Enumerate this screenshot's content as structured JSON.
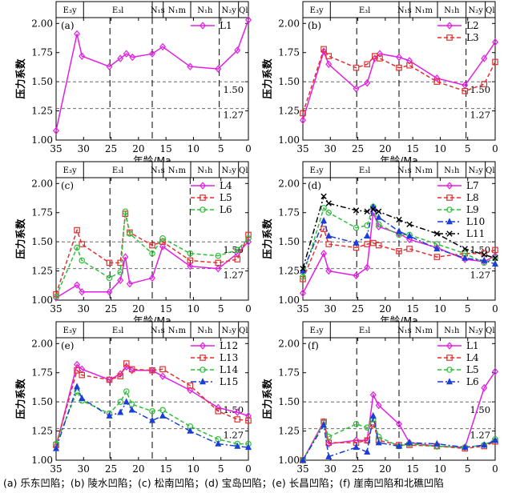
{
  "figure": {
    "caption": "(a) 乐东凹陷；(b) 陵水凹陷；(c) 松南凹陷；(d) 宝岛凹陷；(e) 长昌凹陷；(f) 崖南凹陷和北礁凹陷",
    "ylabel": "压力系数",
    "xlabel": "年龄/Ma"
  },
  "strata": [
    {
      "label": "E₃y",
      "from": 35,
      "to": 30.0
    },
    {
      "label": "E₃l",
      "from": 30.0,
      "to": 17.5
    },
    {
      "label": "N₁s",
      "from": 17.5,
      "to": 15.5
    },
    {
      "label": "N₁m",
      "from": 15.5,
      "to": 10.5
    },
    {
      "label": "N₁h",
      "from": 10.5,
      "to": 5.3
    },
    {
      "label": "N₂y",
      "from": 5.3,
      "to": 1.8
    },
    {
      "label": "Ql",
      "from": 1.8,
      "to": 0
    }
  ],
  "chart_data": [
    {
      "panel": "(a)",
      "type": "line",
      "xlim": [
        35,
        0
      ],
      "ylim": [
        1.0,
        2.05
      ],
      "xticks": [
        "35",
        "30",
        "25",
        "20",
        "15",
        "10",
        "5",
        "0"
      ],
      "yticks": [
        "1.00",
        "1.25",
        "1.50",
        "1.75",
        "2.00"
      ],
      "ref_lines": [
        {
          "y": 1.5,
          "label": "1.50"
        },
        {
          "y": 1.27,
          "label": "1.27"
        }
      ],
      "dashed_vlines": [
        25.2,
        17.5,
        5.3
      ],
      "series": [
        {
          "name": "L1",
          "color": "#e31ee3",
          "marker": "diamond",
          "style": "solid",
          "x": [
            35,
            31.2,
            30.3,
            25.3,
            23.3,
            22.2,
            21.1,
            17.5,
            15.6,
            10.6,
            5.5,
            2.0,
            0
          ],
          "y": [
            1.08,
            1.91,
            1.72,
            1.63,
            1.7,
            1.74,
            1.71,
            1.74,
            1.8,
            1.63,
            1.61,
            1.77,
            2.03
          ]
        }
      ]
    },
    {
      "panel": "(b)",
      "type": "line",
      "xlim": [
        35,
        0
      ],
      "ylim": [
        1.0,
        2.05
      ],
      "xticks": [
        "35",
        "30",
        "25",
        "20",
        "15",
        "10",
        "5",
        "0"
      ],
      "yticks": [
        "1.00",
        "1.25",
        "1.50",
        "1.75",
        "2.00"
      ],
      "ref_lines": [
        {
          "y": 1.5,
          "label": "1.50"
        },
        {
          "y": 1.27,
          "label": "1.27"
        }
      ],
      "dashed_vlines": [
        25.2,
        17.5,
        5.3
      ],
      "series": [
        {
          "name": "L2",
          "color": "#e31ee3",
          "marker": "diamond",
          "style": "solid",
          "x": [
            35,
            31.2,
            30.3,
            25.3,
            23.3,
            21.9,
            21.0,
            17.5,
            15.6,
            10.6,
            5.5,
            2.0,
            0
          ],
          "y": [
            1.17,
            1.76,
            1.65,
            1.44,
            1.49,
            1.7,
            1.74,
            1.71,
            1.68,
            1.53,
            1.47,
            1.7,
            1.84
          ]
        },
        {
          "name": "L3",
          "color": "#e03131",
          "marker": "square",
          "style": "dash",
          "x": [
            35,
            31.2,
            30.3,
            25.3,
            23.3,
            21.9,
            21.0,
            17.5,
            15.6,
            10.6,
            5.5,
            2.0,
            0
          ],
          "y": [
            1.23,
            1.78,
            1.72,
            1.62,
            1.65,
            1.72,
            1.7,
            1.62,
            1.64,
            1.5,
            1.42,
            1.48,
            1.67
          ]
        }
      ]
    },
    {
      "panel": "(c)",
      "type": "line",
      "xlim": [
        35,
        0
      ],
      "ylim": [
        1.0,
        2.05
      ],
      "xticks": [
        "35",
        "30",
        "25",
        "20",
        "15",
        "10",
        "5",
        "0"
      ],
      "yticks": [
        "1.00",
        "1.25",
        "1.50",
        "1.75",
        "2.00"
      ],
      "ref_lines": [
        {
          "y": 1.5,
          "label": "1.50"
        },
        {
          "y": 1.27,
          "label": "1.27"
        }
      ],
      "dashed_vlines": [
        25.2,
        17.5,
        10.6
      ],
      "series": [
        {
          "name": "L4",
          "color": "#e31ee3",
          "marker": "diamond",
          "style": "solid",
          "x": [
            35,
            31.2,
            30.3,
            25.3,
            23.3,
            22.4,
            21.6,
            17.5,
            15.6,
            10.6,
            5.5,
            2.0,
            0
          ],
          "y": [
            1.02,
            1.13,
            1.07,
            1.07,
            1.17,
            1.37,
            1.14,
            1.19,
            1.46,
            1.29,
            1.27,
            1.4,
            1.5
          ]
        },
        {
          "name": "L5",
          "color": "#e03131",
          "marker": "square",
          "style": "dash",
          "x": [
            35,
            31.2,
            30.3,
            25.3,
            23.3,
            22.4,
            21.6,
            17.5,
            15.6,
            10.6,
            5.5,
            2.0,
            0
          ],
          "y": [
            1.05,
            1.6,
            1.48,
            1.32,
            1.32,
            1.74,
            1.58,
            1.47,
            1.5,
            1.34,
            1.32,
            1.35,
            1.56
          ]
        },
        {
          "name": "L6",
          "color": "#2fbf3a",
          "marker": "circle",
          "style": "dash",
          "x": [
            35,
            31.2,
            30.3,
            25.3,
            23.3,
            22.4,
            21.6,
            17.5,
            15.6,
            10.6,
            5.5,
            2.0,
            0
          ],
          "y": [
            1.03,
            1.45,
            1.34,
            1.19,
            1.24,
            1.76,
            1.57,
            1.4,
            1.53,
            1.4,
            1.38,
            1.43,
            1.53
          ]
        }
      ]
    },
    {
      "panel": "(d)",
      "type": "line",
      "xlim": [
        35,
        0
      ],
      "ylim": [
        1.0,
        2.05
      ],
      "xticks": [
        "35",
        "30",
        "25",
        "20",
        "15",
        "10",
        "5",
        "0"
      ],
      "yticks": [
        "1.00",
        "1.25",
        "1.50",
        "1.75",
        "2.00"
      ],
      "ref_lines": [
        {
          "y": 1.5,
          "label": "1.50"
        },
        {
          "y": 1.27,
          "label": "1.27"
        }
      ],
      "dashed_vlines": [
        25.2,
        17.5
      ],
      "series": [
        {
          "name": "L7",
          "color": "#e31ee3",
          "marker": "diamond",
          "style": "solid",
          "x": [
            35,
            31.2,
            30.3,
            25.3,
            23.3,
            22.2,
            21.2,
            17.5,
            15.6,
            10.6,
            5.5,
            2.0,
            0
          ],
          "y": [
            1.06,
            1.4,
            1.25,
            1.21,
            1.28,
            1.75,
            1.63,
            1.57,
            1.52,
            1.45,
            1.35,
            1.33,
            1.38
          ]
        },
        {
          "name": "L8",
          "color": "#e03131",
          "marker": "square",
          "style": "dash",
          "x": [
            35,
            31.2,
            30.3,
            25.3,
            23.3,
            22.2,
            21.2,
            17.5,
            15.6,
            10.6,
            5.5,
            2.0,
            0
          ],
          "y": [
            1.18,
            1.61,
            1.48,
            1.45,
            1.48,
            1.49,
            1.47,
            1.42,
            1.44,
            1.37,
            1.4,
            1.4,
            1.43
          ]
        },
        {
          "name": "L9",
          "color": "#2fbf3a",
          "marker": "circle",
          "style": "dash",
          "x": [
            35,
            31.2,
            30.3,
            25.3,
            23.3,
            22.2,
            21.2,
            17.5,
            15.6,
            10.6,
            5.5,
            2.0,
            0
          ],
          "y": [
            1.2,
            1.79,
            1.75,
            1.62,
            1.64,
            1.8,
            1.65,
            1.56,
            1.56,
            1.48,
            1.4,
            1.32,
            1.36
          ]
        },
        {
          "name": "L10",
          "color": "#1a3fd6",
          "marker": "triangle",
          "style": "dashdot",
          "x": [
            35,
            31.2,
            30.3,
            25.3,
            23.3,
            22.2,
            21.2,
            17.5,
            15.6,
            10.6,
            5.5,
            2.0,
            0
          ],
          "y": [
            1.25,
            1.68,
            1.55,
            1.49,
            1.55,
            1.8,
            1.71,
            1.59,
            1.55,
            1.44,
            1.36,
            1.34,
            1.31
          ]
        },
        {
          "name": "L11",
          "color": "#000000",
          "marker": "x",
          "style": "dashdot",
          "x": [
            35,
            31.2,
            30.3,
            25.3,
            23.3,
            22.2,
            21.2,
            17.5,
            15.6,
            10.6,
            5.5,
            2.0,
            0
          ],
          "y": [
            1.27,
            1.89,
            1.83,
            1.77,
            1.76,
            1.78,
            1.76,
            1.69,
            1.65,
            1.57,
            1.44,
            1.39,
            1.36
          ]
        }
      ]
    },
    {
      "panel": "(e)",
      "type": "line",
      "xlim": [
        35,
        0
      ],
      "ylim": [
        1.0,
        2.05
      ],
      "xticks": [
        "35",
        "30",
        "25",
        "20",
        "15",
        "10",
        "5",
        "0"
      ],
      "yticks": [
        "1.00",
        "1.25",
        "1.50",
        "1.75",
        "2.00"
      ],
      "ref_lines": [
        {
          "y": 1.5,
          "label": "1.50"
        },
        {
          "y": 1.27,
          "label": "1.27"
        }
      ],
      "dashed_vlines": [
        25.2,
        17.5
      ],
      "series": [
        {
          "name": "L12",
          "color": "#e31ee3",
          "marker": "diamond",
          "style": "solid",
          "x": [
            35,
            31.2,
            30.3,
            25.3,
            23.3,
            22.2,
            21.2,
            17.5,
            15.6,
            10.6,
            5.5,
            2.0,
            0
          ],
          "y": [
            1.12,
            1.82,
            1.78,
            1.69,
            1.74,
            1.8,
            1.77,
            1.77,
            1.72,
            1.6,
            1.45,
            1.41,
            1.38
          ]
        },
        {
          "name": "L13",
          "color": "#e03131",
          "marker": "square",
          "style": "dash",
          "x": [
            35,
            31.2,
            30.3,
            25.3,
            23.3,
            22.2,
            21.2,
            17.5,
            15.6,
            10.6,
            5.5,
            2.0,
            0
          ],
          "y": [
            1.13,
            1.77,
            1.73,
            1.69,
            1.72,
            1.83,
            1.78,
            1.77,
            1.78,
            1.64,
            1.42,
            1.35,
            1.34
          ]
        },
        {
          "name": "L14",
          "color": "#2fbf3a",
          "marker": "circle",
          "style": "dash",
          "x": [
            35,
            31.2,
            30.3,
            25.3,
            23.3,
            22.2,
            21.2,
            17.5,
            15.6,
            10.6,
            5.5,
            2.0,
            0
          ],
          "y": [
            1.14,
            1.59,
            1.51,
            1.4,
            1.5,
            1.59,
            1.48,
            1.42,
            1.43,
            1.29,
            1.18,
            1.14,
            1.14
          ]
        },
        {
          "name": "L15",
          "color": "#1a3fd6",
          "marker": "triangle",
          "style": "dashdot",
          "x": [
            35,
            31.2,
            30.3,
            25.3,
            23.3,
            22.2,
            21.2,
            17.5,
            15.6,
            10.6,
            5.5,
            2.0,
            0
          ],
          "y": [
            1.1,
            1.63,
            1.53,
            1.38,
            1.41,
            1.5,
            1.43,
            1.34,
            1.38,
            1.25,
            1.14,
            1.12,
            1.11
          ]
        }
      ]
    },
    {
      "panel": "(f)",
      "type": "line",
      "xlim": [
        35,
        0
      ],
      "ylim": [
        1.0,
        2.05
      ],
      "xticks": [
        "35",
        "30",
        "25",
        "20",
        "15",
        "10",
        "5",
        "0"
      ],
      "yticks": [
        "1.00",
        "1.25",
        "1.50",
        "1.75",
        "2.00"
      ],
      "ref_lines": [
        {
          "y": 1.5,
          "label": "1.50"
        },
        {
          "y": 1.27,
          "label": "1.27"
        }
      ],
      "dashed_vlines": [
        25.2,
        17.5
      ],
      "series": [
        {
          "name": "L1",
          "color": "#e31ee3",
          "marker": "diamond",
          "style": "solid",
          "x": [
            35,
            31.2,
            30.3,
            25.3,
            23.3,
            22.2,
            21.2,
            17.5,
            15.6,
            10.6,
            5.5,
            2.0,
            0
          ],
          "y": [
            1.0,
            1.33,
            1.14,
            1.17,
            1.17,
            1.56,
            1.47,
            1.31,
            1.15,
            1.12,
            1.11,
            1.62,
            1.76
          ]
        },
        {
          "name": "L4",
          "color": "#e03131",
          "marker": "square",
          "style": "dash",
          "x": [
            35,
            31.2,
            30.3,
            25.3,
            23.3,
            22.2,
            21.2,
            17.5,
            15.6,
            10.6,
            5.5,
            2.0,
            0
          ],
          "y": [
            1.0,
            1.33,
            1.15,
            1.15,
            1.17,
            1.31,
            1.17,
            1.13,
            1.13,
            1.12,
            1.1,
            1.12,
            1.16
          ]
        },
        {
          "name": "L5",
          "color": "#2fbf3a",
          "marker": "circle",
          "style": "dash",
          "x": [
            35,
            31.2,
            30.3,
            25.3,
            23.3,
            22.2,
            21.2,
            17.5,
            15.6,
            10.6,
            5.5,
            2.0,
            0
          ],
          "y": [
            1.0,
            1.32,
            1.2,
            1.31,
            1.28,
            1.35,
            1.2,
            1.12,
            1.14,
            1.12,
            1.11,
            1.13,
            1.18
          ]
        },
        {
          "name": "L6",
          "color": "#1a3fd6",
          "marker": "triangle",
          "style": "dashdot",
          "x": [
            35,
            31.2,
            30.3,
            25.3,
            23.3,
            22.2,
            21.2,
            17.5,
            15.6,
            10.6,
            5.5,
            2.0,
            0
          ],
          "y": [
            1.0,
            1.3,
            1.03,
            1.11,
            1.07,
            1.38,
            1.15,
            1.12,
            1.15,
            1.14,
            1.11,
            1.13,
            1.17
          ]
        }
      ]
    }
  ]
}
